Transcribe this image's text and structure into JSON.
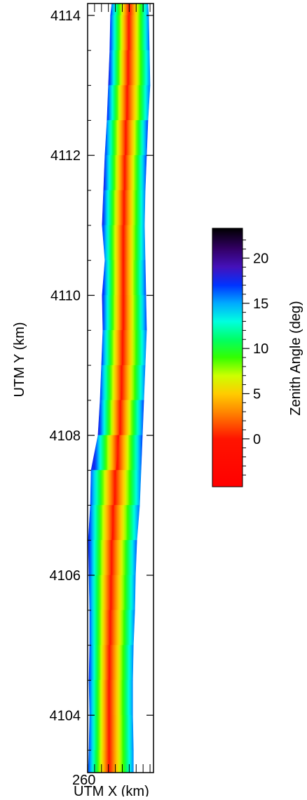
{
  "chart_data": {
    "type": "swath",
    "xlabel": "UTM X (km)",
    "ylabel": "UTM Y (km)",
    "colorbar_label": "Zenith Angle (deg)",
    "xlim": [
      260,
      260.95
    ],
    "ylim": [
      4103.18,
      4114.17
    ],
    "xticks": [
      260
    ],
    "xminorticks": [
      260.1,
      260.2,
      260.3,
      260.4,
      260.5,
      260.6,
      260.7,
      260.8,
      260.9
    ],
    "yticks": [
      4104,
      4106,
      4108,
      4110,
      4112,
      4114
    ],
    "yminorticks": [
      4103.5,
      4104.5,
      4105,
      4105.5,
      4106.5,
      4107,
      4107.5,
      4108.5,
      4109,
      4109.5,
      4110.5,
      4111,
      4111.5,
      4112.5,
      4113,
      4113.5
    ],
    "clim": [
      -5.3,
      23.3
    ],
    "cticks": [
      0,
      5,
      10,
      15,
      20
    ],
    "cminorticks": [
      -4,
      -3,
      -2,
      -1,
      1,
      2,
      3,
      4,
      6,
      7,
      8,
      9,
      11,
      12,
      13,
      14,
      16,
      17,
      18,
      19,
      21,
      22
    ],
    "colorscale": [
      [
        -5.3,
        "#ff0000"
      ],
      [
        0,
        "#ff1400"
      ],
      [
        3,
        "#ff8800"
      ],
      [
        5,
        "#ffcc00"
      ],
      [
        7,
        "#ccff00"
      ],
      [
        9,
        "#33ff00"
      ],
      [
        11,
        "#00ff66"
      ],
      [
        13,
        "#00ffe0"
      ],
      [
        15,
        "#00aaff"
      ],
      [
        17,
        "#0033ff"
      ],
      [
        19,
        "#4411bb"
      ],
      [
        21,
        "#330066"
      ],
      [
        23.3,
        "#000000"
      ]
    ],
    "center_angle": 0,
    "swath": {
      "y": [
        4114.17,
        4114,
        4113.5,
        4113,
        4112.5,
        4112,
        4111.5,
        4111,
        4110.5,
        4110,
        4109.5,
        4109,
        4108.5,
        4108,
        4107.5,
        4107,
        4106.5,
        4106,
        4105.5,
        4105,
        4104.5,
        4104,
        4103.5,
        4103.18
      ],
      "center_x": [
        260.6,
        260.6,
        260.59,
        260.58,
        260.56,
        260.54,
        260.53,
        260.52,
        260.51,
        260.52,
        260.51,
        260.5,
        260.48,
        260.46,
        260.41,
        260.38,
        260.35,
        260.34,
        260.33,
        260.32,
        260.31,
        260.31,
        260.31,
        260.31
      ],
      "left_x": [
        260.35,
        260.33,
        260.32,
        260.3,
        260.28,
        260.25,
        260.23,
        260.21,
        260.25,
        260.21,
        260.22,
        260.2,
        260.18,
        260.15,
        260.05,
        260.04,
        260.01,
        260.02,
        260.03,
        260.03,
        260.02,
        260.03,
        260.02,
        260.01
      ],
      "right_x": [
        260.87,
        260.88,
        260.89,
        260.9,
        260.87,
        260.85,
        260.83,
        260.82,
        260.83,
        260.84,
        260.85,
        260.83,
        260.81,
        260.79,
        260.77,
        260.75,
        260.71,
        260.69,
        260.68,
        260.66,
        260.65,
        260.65,
        260.66,
        260.66
      ],
      "left_angle": [
        16,
        17,
        17,
        18,
        16,
        17,
        18,
        17,
        16,
        18,
        17,
        16,
        17,
        18,
        17,
        16,
        18,
        17,
        16,
        17,
        17,
        16,
        17,
        16
      ],
      "right_angle": [
        15,
        16,
        16,
        15,
        16,
        17,
        16,
        15,
        16,
        17,
        16,
        15,
        16,
        17,
        16,
        15,
        16,
        16,
        15,
        16,
        15,
        16,
        15,
        16
      ]
    }
  }
}
